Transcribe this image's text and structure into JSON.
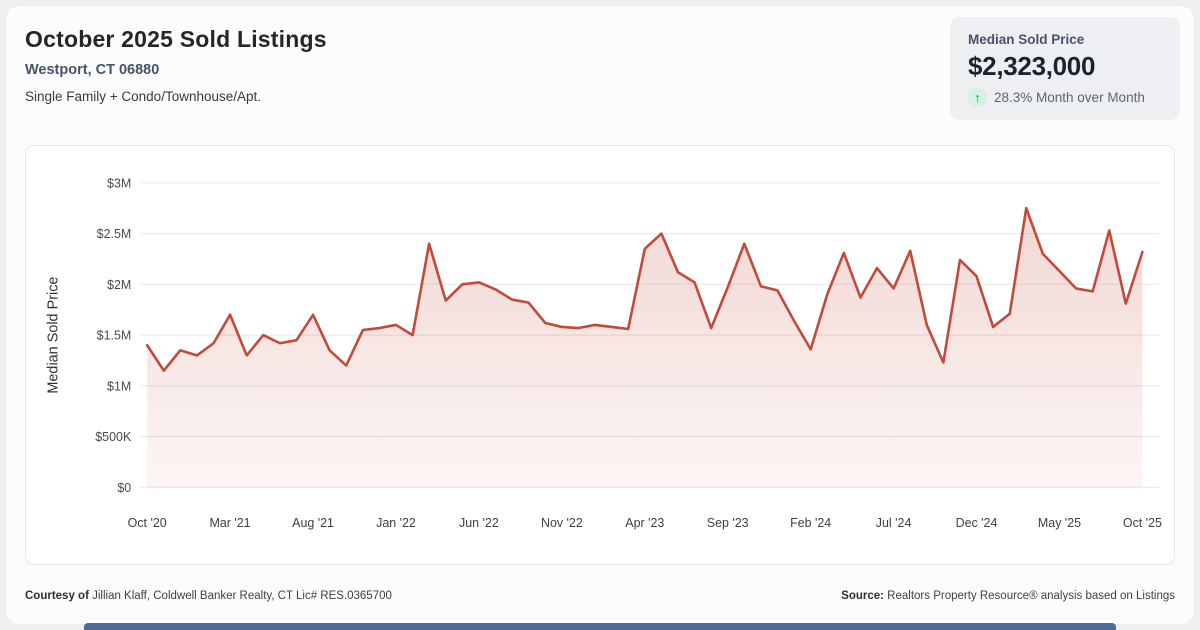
{
  "header": {
    "title": "October 2025 Sold Listings",
    "location": "Westport, CT 06880",
    "property_types": "Single Family + Condo/Townhouse/Apt."
  },
  "kpi": {
    "label": "Median Sold Price",
    "value": "$2,323,000",
    "change": "28.3% Month over Month",
    "trend_icon": "up-arrow",
    "trend_direction": "up",
    "trend_color": "#1fa567"
  },
  "chart_data": {
    "type": "area",
    "series_name": "Median Sold Price",
    "ylabel": "Median Sold Price",
    "xlabel": "",
    "frequency": "monthly",
    "x_start": "Oct 2020",
    "x_end": "Oct 2025",
    "units": "USD millions",
    "ylim": [
      0,
      3
    ],
    "grid": "horizontal",
    "legend": "none",
    "values": [
      1.4,
      1.15,
      1.35,
      1.3,
      1.42,
      1.7,
      1.3,
      1.5,
      1.42,
      1.45,
      1.7,
      1.35,
      1.2,
      1.55,
      1.57,
      1.6,
      1.5,
      2.4,
      1.84,
      2.0,
      2.02,
      1.95,
      1.85,
      1.82,
      1.62,
      1.58,
      1.57,
      1.6,
      1.58,
      1.56,
      2.35,
      2.5,
      2.12,
      2.02,
      1.57,
      1.97,
      2.4,
      1.98,
      1.94,
      1.64,
      1.36,
      1.9,
      2.31,
      1.87,
      2.16,
      1.96,
      2.33,
      1.6,
      1.23,
      2.24,
      2.08,
      1.58,
      1.71,
      2.75,
      2.3,
      2.13,
      1.96,
      1.93,
      2.53,
      1.81,
      2.32
    ],
    "x_tick_every": 5,
    "x_tick_labels": [
      "Oct '20",
      "Mar '21",
      "Aug '21",
      "Jan '22",
      "Jun '22",
      "Nov '22",
      "Apr '23",
      "Sep '23",
      "Feb '24",
      "Jul '24",
      "Dec '24",
      "May '25",
      "Oct '25"
    ],
    "y_ticks": [
      {
        "value": 0,
        "label": "$0"
      },
      {
        "value": 0.5,
        "label": "$500K"
      },
      {
        "value": 1,
        "label": "$1M"
      },
      {
        "value": 1.5,
        "label": "$1.5M"
      },
      {
        "value": 2,
        "label": "$2M"
      },
      {
        "value": 2.5,
        "label": "$2.5M"
      },
      {
        "value": 3,
        "label": "$3M"
      }
    ],
    "line_color": "#c24a3a",
    "fill_top_color": "rgba(194,74,58,0.22)",
    "fill_bottom_color": "rgba(194,74,58,0.05)",
    "grid_color": "#ebebee",
    "tick_color": "#4a4a4a"
  },
  "footer": {
    "courtesy_label": "Courtesy of",
    "courtesy_text": " Jillian Klaff, Coldwell Banker Realty, CT Lic# RES.0365700",
    "source_label": "Source:",
    "source_text": " Realtors Property Resource® analysis based on Listings"
  },
  "accent_bar_color": "#4e6d94"
}
